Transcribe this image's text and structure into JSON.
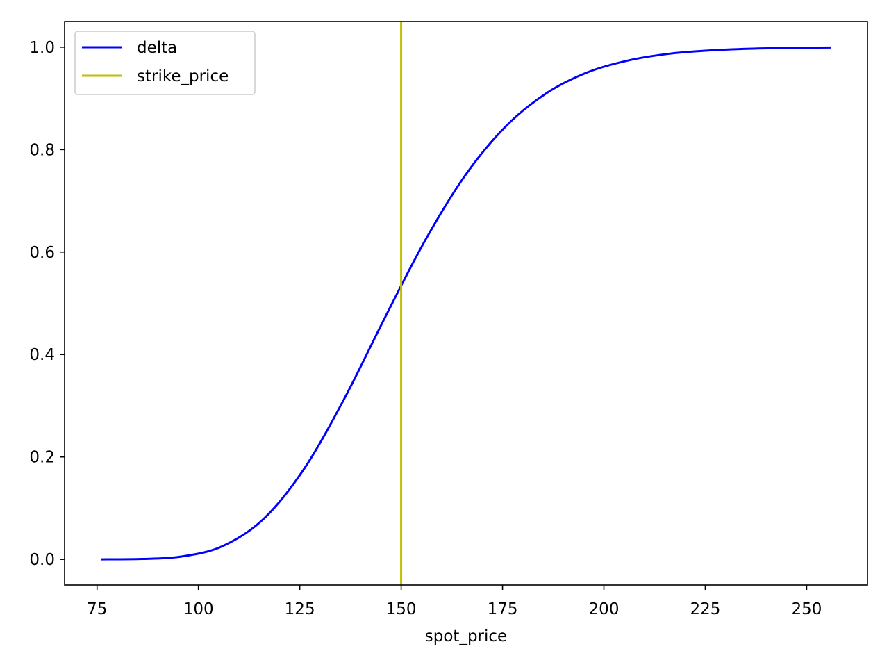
{
  "chart_data": {
    "type": "line",
    "title": "",
    "xlabel": "spot_price",
    "ylabel": "",
    "xlim": [
      67,
      265
    ],
    "ylim": [
      -0.05,
      1.05
    ],
    "xticks": [
      75,
      100,
      125,
      150,
      175,
      200,
      225,
      250
    ],
    "yticks": [
      0.0,
      0.2,
      0.4,
      0.6,
      0.8,
      1.0
    ],
    "xtick_labels": [
      "75",
      "100",
      "125",
      "150",
      "175",
      "200",
      "225",
      "250"
    ],
    "ytick_labels": [
      "0.0",
      "0.2",
      "0.4",
      "0.6",
      "0.8",
      "1.0"
    ],
    "grid": false,
    "legend_position": "top-left",
    "series": [
      {
        "name": "delta",
        "color": "#0000ff",
        "x": [
          76,
          86,
          96,
          106,
          116,
          126,
          136,
          146,
          156,
          166,
          176,
          186,
          196,
          206,
          216,
          226,
          236,
          246,
          256
        ],
        "y": [
          0.0001,
          0.0008,
          0.0058,
          0.026,
          0.0785,
          0.176,
          0.314,
          0.472,
          0.624,
          0.752,
          0.847,
          0.911,
          0.951,
          0.974,
          0.987,
          0.9935,
          0.9969,
          0.9986,
          0.9993
        ]
      }
    ],
    "vlines": [
      {
        "name": "strike_price",
        "x": 150,
        "color": "#bfbf00"
      }
    ]
  }
}
